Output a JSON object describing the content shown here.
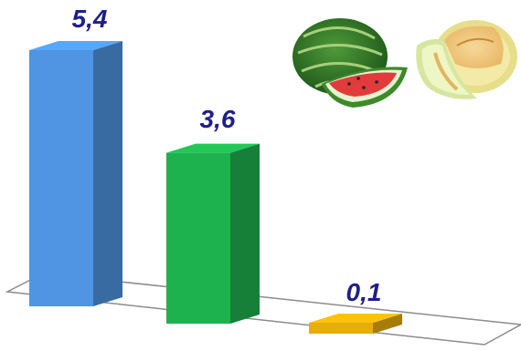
{
  "chart_data": {
    "type": "bar",
    "categories": [
      "",
      "",
      ""
    ],
    "values": [
      5.4,
      3.6,
      0.1
    ],
    "value_labels": [
      "5,4",
      "3,6",
      "0,1"
    ],
    "colors": {
      "bars": [
        "#4F95E3",
        "#1EB24F",
        "#E6AD0B"
      ],
      "label": "#1F1F8A",
      "floor": "#FFFFFF",
      "floor_edge": "#8C8C8C"
    },
    "ylim": [
      0,
      6
    ],
    "grid": false,
    "legend": "none",
    "decorations": [
      "watermelon-image",
      "melon-image"
    ]
  }
}
